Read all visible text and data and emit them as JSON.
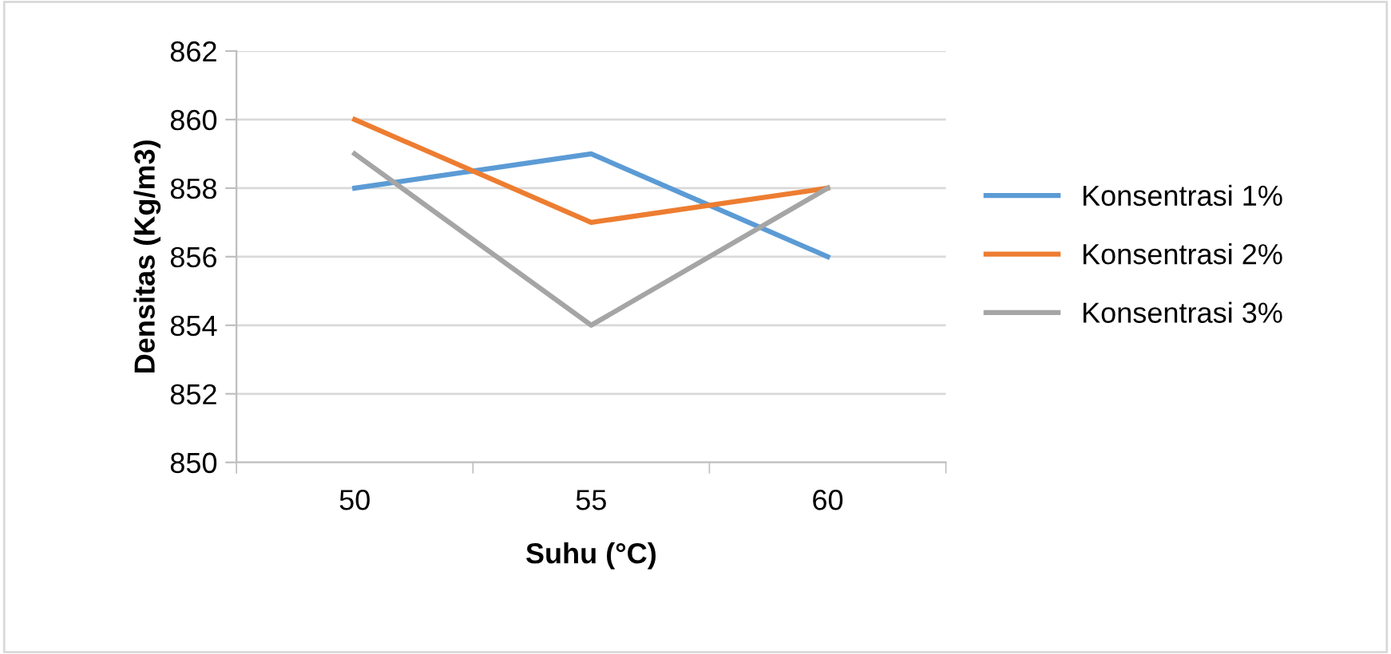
{
  "chart_data": {
    "type": "line",
    "xlabel": "Suhu (°C)",
    "ylabel": "Densitas (Kg/m3)",
    "categories": [
      "50",
      "55",
      "60"
    ],
    "series": [
      {
        "name": "Konsentrasi 1%",
        "color": "#5b9bd5",
        "values": [
          858,
          859,
          856
        ]
      },
      {
        "name": "Konsentrasi 2%",
        "color": "#ed7d31",
        "values": [
          860,
          857,
          858
        ]
      },
      {
        "name": "Konsentrasi 3%",
        "color": "#a5a5a5",
        "values": [
          859,
          854,
          858
        ]
      }
    ],
    "ylim": [
      850,
      862
    ],
    "yticks": [
      850,
      852,
      854,
      856,
      858,
      860,
      862
    ],
    "grid": "y",
    "legend": "right",
    "marker": "none",
    "line_style": "solid"
  }
}
